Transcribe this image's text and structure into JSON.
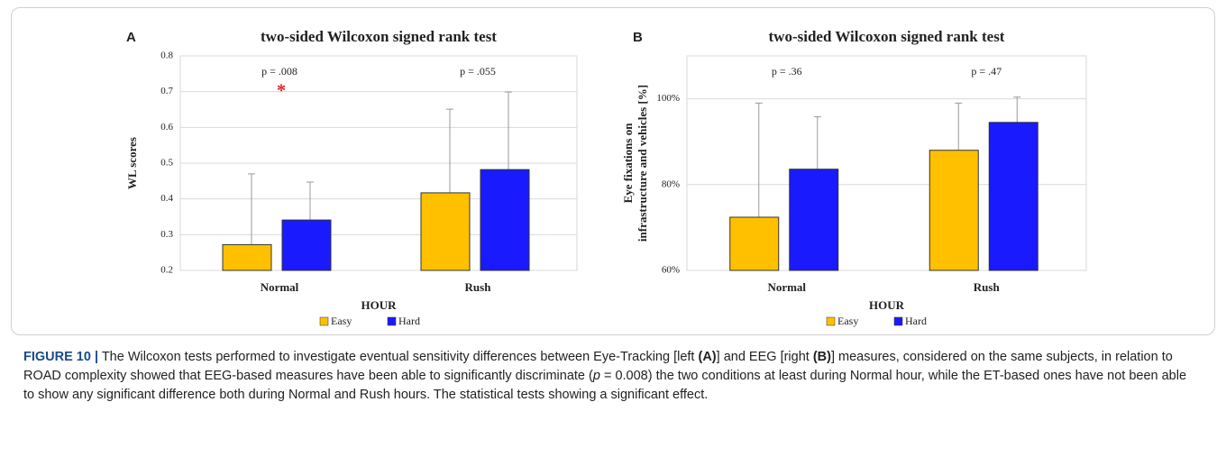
{
  "chart_data": [
    {
      "type": "bar",
      "panel": "A",
      "title": "two-sided Wilcoxon signed rank test",
      "ylabel": [
        "WL scores"
      ],
      "xlabel": "HOUR",
      "categories": [
        "Normal",
        "Rush"
      ],
      "series": [
        {
          "name": "Easy",
          "color": "#ffc000",
          "values": [
            0.272,
            0.417
          ],
          "errors": [
            0.198,
            0.234
          ]
        },
        {
          "name": "Hard",
          "color": "#1a1aff",
          "values": [
            0.341,
            0.482
          ],
          "errors": [
            0.106,
            0.217
          ]
        }
      ],
      "ylim": [
        0.2,
        0.8
      ],
      "yticks": [
        0.2,
        0.3,
        0.4,
        0.5,
        0.6,
        0.7,
        0.8
      ],
      "grid": true,
      "annotations": [
        "p = .008",
        "p = .055"
      ],
      "significance": "*"
    },
    {
      "type": "bar",
      "panel": "B",
      "title": "two-sided Wilcoxon signed rank test",
      "ylabel": [
        "Eye fixations on",
        "infrastructure and vehicles [%]"
      ],
      "xlabel": "HOUR",
      "categories": [
        "Normal",
        "Rush"
      ],
      "series": [
        {
          "name": "Easy",
          "color": "#ffc000",
          "values": [
            72.4,
            88
          ],
          "errors": [
            26.6,
            11
          ]
        },
        {
          "name": "Hard",
          "color": "#1a1aff",
          "values": [
            83.6,
            94.5
          ],
          "errors": [
            12.2,
            5.9
          ]
        }
      ],
      "ylim": [
        60,
        110
      ],
      "yticks": [
        {
          "value": 60,
          "label": "60%"
        },
        {
          "value": 80,
          "label": "80%"
        },
        {
          "value": 100,
          "label": "100%"
        }
      ],
      "grid": true,
      "annotations": [
        "p = .36",
        "p = .47"
      ]
    }
  ],
  "caption": {
    "label": "FIGURE 10 |",
    "parts": [
      "The Wilcoxon tests performed to investigate eventual sensitivity differences between Eye-Tracking [left ",
      "(A)",
      "] and EEG [right ",
      "(B)",
      "] measures, considered on the same subjects, in relation to ROAD complexity showed that EEG-based measures have been able to significantly discriminate (",
      "p",
      " = 0.008) the two conditions at least during Normal hour, while the ET-based ones have not been able to show any significant difference both during Normal and Rush hours. The statistical tests showing a significant effect."
    ]
  }
}
